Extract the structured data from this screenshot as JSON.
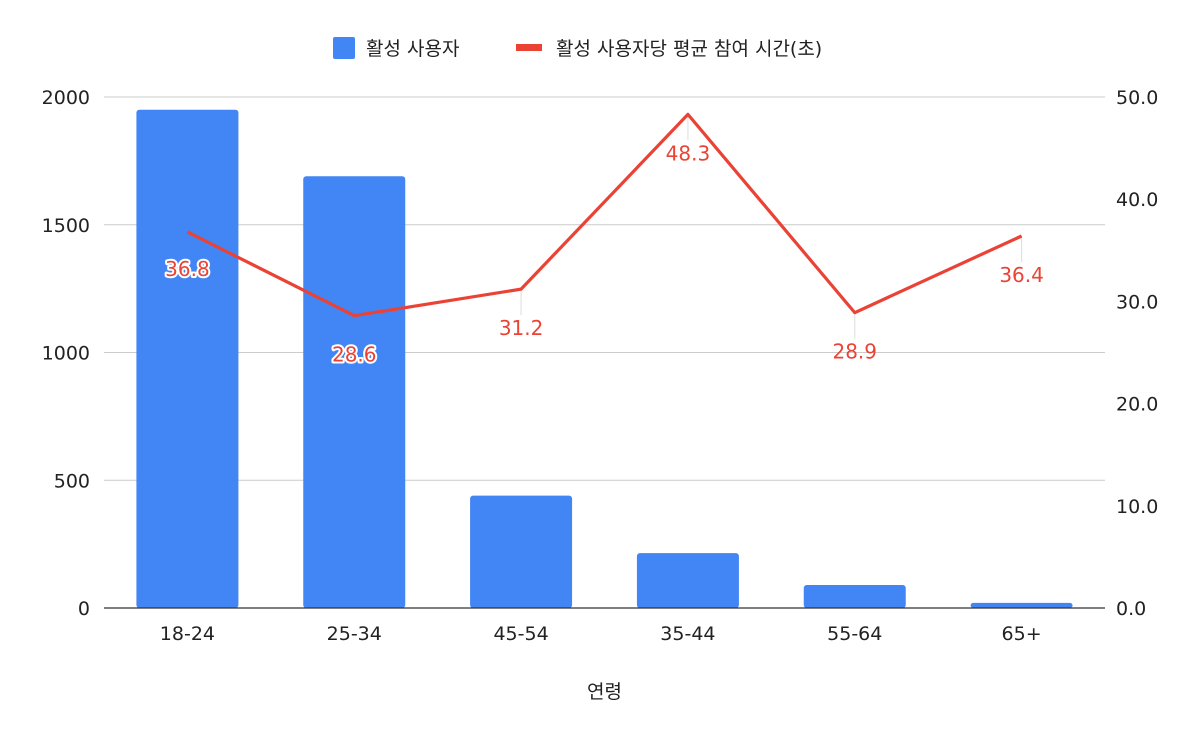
{
  "chart_data": {
    "type": "bar",
    "categories": [
      "18-24",
      "25-34",
      "45-54",
      "35-44",
      "55-64",
      "65+"
    ],
    "series": [
      {
        "name": "활성 사용자",
        "type": "bar",
        "axis": "left",
        "color": "#4285F4",
        "values": [
          1950,
          1690,
          440,
          215,
          90,
          20
        ]
      },
      {
        "name": "활성 사용자당 평균 참여 시간(초)",
        "type": "line",
        "axis": "right",
        "color": "#EA4335",
        "values": [
          36.8,
          28.6,
          31.2,
          48.3,
          28.9,
          36.4
        ],
        "data_labels": [
          "36.8",
          "28.6",
          "31.2",
          "48.3",
          "28.9",
          "36.4"
        ]
      }
    ],
    "xlabel": "연령",
    "ylabel": "",
    "y2label": "",
    "ylim": [
      0,
      2000
    ],
    "y2lim": [
      0,
      50
    ],
    "yticks": [
      "0",
      "500",
      "1000",
      "1500",
      "2000"
    ],
    "y2ticks": [
      "0.0",
      "10.0",
      "20.0",
      "30.0",
      "40.0",
      "50.0"
    ],
    "grid": true,
    "legend_position": "top-center"
  }
}
